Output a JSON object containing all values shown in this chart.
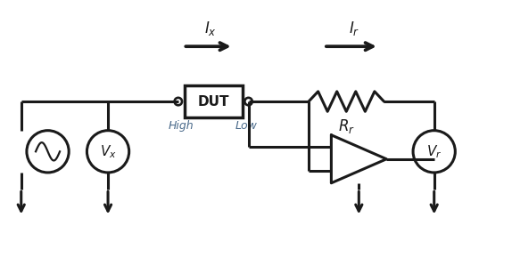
{
  "bg_color": "#ffffff",
  "line_color": "#1a1a1a",
  "text_color": "#4a6a8a",
  "lw": 2.2,
  "figsize": [
    5.74,
    2.9
  ],
  "dpi": 100,
  "xlim": [
    0,
    10
  ],
  "ylim": [
    0,
    5
  ]
}
